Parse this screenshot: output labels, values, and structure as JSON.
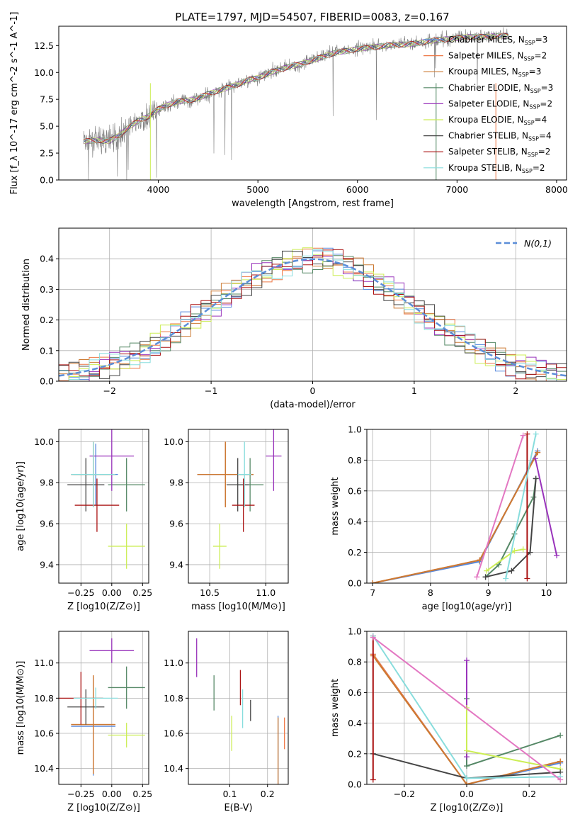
{
  "figure": {
    "title": "PLATE=1797, MJD=54507, FIBERID=0083, z=0.167"
  },
  "models": [
    {
      "name": "Chabrier MILES",
      "nssp": "3",
      "color": "#5588dd"
    },
    {
      "name": "Salpeter MILES",
      "nssp": "2",
      "color": "#ee7744"
    },
    {
      "name": "Kroupa MILES",
      "nssp": "3",
      "color": "#cc7a33"
    },
    {
      "name": "Chabrier ELODIE",
      "nssp": "3",
      "color": "#558866"
    },
    {
      "name": "Salpeter ELODIE",
      "nssp": "2",
      "color": "#9933bb"
    },
    {
      "name": "Kroupa ELODIE",
      "nssp": "4",
      "color": "#ccee55"
    },
    {
      "name": "Chabrier STELIB",
      "nssp": "4",
      "color": "#444444"
    },
    {
      "name": "Salpeter STELIB",
      "nssp": "2",
      "color": "#aa1111"
    },
    {
      "name": "Kroupa STELIB",
      "nssp": "2",
      "color": "#88dddd"
    }
  ],
  "chart_data": [
    {
      "type": "line",
      "id": "spectrum",
      "xlabel": "wavelength [Angstrom, rest frame]",
      "ylabel": "Flux [f_λ 10^-17 erg cm^-2 s^-1 A^-1]",
      "xlim": [
        3000,
        8100
      ],
      "ylim": [
        0,
        14.3
      ],
      "xticks": [
        "4000",
        "5000",
        "6000",
        "7000",
        "8000"
      ],
      "yticks": [
        "0.0",
        "2.5",
        "5.0",
        "7.5",
        "10.0",
        "12.5"
      ],
      "data_color": "#808080",
      "data": {
        "x": [
          3250,
          3400,
          3500,
          3600,
          3700,
          3800,
          3900,
          4000,
          4100,
          4200,
          4300,
          4400,
          4500,
          4600,
          4700,
          4800,
          4900,
          5000,
          5100,
          5200,
          5300,
          5400,
          5500,
          5600,
          5700,
          5800,
          5900,
          6000,
          6100,
          6200,
          6300,
          6400,
          6500,
          6600,
          6700,
          6800,
          6900,
          7000,
          7100,
          7200,
          7300,
          7400,
          7500
        ],
        "y": [
          3.6,
          3.7,
          3.7,
          4.0,
          4.8,
          5.4,
          5.8,
          6.5,
          7.0,
          7.4,
          7.3,
          7.6,
          7.9,
          8.4,
          8.6,
          8.9,
          9.2,
          9.5,
          9.9,
          10.3,
          10.6,
          10.6,
          11.0,
          11.4,
          11.7,
          12.0,
          12.1,
          12.2,
          12.4,
          12.5,
          12.4,
          12.6,
          12.7,
          12.7,
          12.9,
          13.0,
          13.1,
          13.2,
          13.3,
          13.3,
          13.4,
          13.4,
          13.4
        ]
      },
      "model_fit": {
        "x": [
          3250,
          3400,
          3500,
          3600,
          3700,
          3800,
          3900,
          4000,
          4100,
          4200,
          4300,
          4400,
          4500,
          4600,
          4700,
          4800,
          4900,
          5000,
          5100,
          5200,
          5300,
          5400,
          5500,
          5600,
          5700,
          5800,
          5900,
          6000,
          6100,
          6200,
          6300,
          6400,
          6500,
          6600,
          6700,
          6800,
          6900,
          7000,
          7100,
          7200,
          7300,
          7400,
          7500
        ],
        "y": [
          3.6,
          3.7,
          3.6,
          4.1,
          4.9,
          5.5,
          5.9,
          6.6,
          7.0,
          7.3,
          7.4,
          7.6,
          8.0,
          8.3,
          8.6,
          8.9,
          9.3,
          9.5,
          9.9,
          10.2,
          10.5,
          10.7,
          11.0,
          11.3,
          11.6,
          11.9,
          12.0,
          12.2,
          12.3,
          12.4,
          12.5,
          12.6,
          12.6,
          12.7,
          12.9,
          13.0,
          13.1,
          13.2,
          13.3,
          13.3,
          13.3,
          13.4,
          13.4
        ]
      },
      "legend_position": "top-right"
    },
    {
      "type": "histogram",
      "id": "residuals",
      "xlabel": "(data-model)/error",
      "ylabel": "Normed distribution",
      "xlim": [
        -2.5,
        2.5
      ],
      "ylim": [
        0,
        0.5
      ],
      "xticks": [
        "−2",
        "−1",
        "0",
        "1",
        "2"
      ],
      "yticks": [
        "0.0",
        "0.1",
        "0.2",
        "0.3",
        "0.4"
      ],
      "bin_edges": [
        -2.5,
        -2.4,
        -2.3,
        -2.2,
        -2.1,
        -2.0,
        -1.9,
        -1.8,
        -1.7,
        -1.6,
        -1.5,
        -1.4,
        -1.3,
        -1.2,
        -1.1,
        -1.0,
        -0.9,
        -0.8,
        -0.7,
        -0.6,
        -0.5,
        -0.4,
        -0.3,
        -0.2,
        -0.1,
        0.0,
        0.1,
        0.2,
        0.3,
        0.4,
        0.5,
        0.6,
        0.7,
        0.8,
        0.9,
        1.0,
        1.1,
        1.2,
        1.3,
        1.4,
        1.5,
        1.6,
        1.7,
        1.8,
        1.9,
        2.0,
        2.1,
        2.2,
        2.3,
        2.4,
        2.5
      ],
      "reference": {
        "label": "N(0,1)",
        "color": "#5b8ed8"
      },
      "legend_position": "top-right"
    },
    {
      "type": "scatter",
      "id": "age-z",
      "xlabel": "Z [log10(Z/Z⊙)]",
      "ylabel": "age [log10(age/yr)]",
      "xlim": [
        -0.43,
        0.3
      ],
      "ylim": [
        9.31,
        10.06
      ],
      "xticks": [
        "−0.25",
        "0.00",
        "0.25"
      ],
      "yticks": [
        "9.4",
        "9.6",
        "9.8",
        "10.0"
      ],
      "points": [
        {
          "model": 0,
          "x": -0.13,
          "y": 9.84,
          "xerr": 0.18,
          "yerr": 0.15
        },
        {
          "model": 1,
          "x": -0.15,
          "y": 9.84,
          "xerr": 0.18,
          "yerr": 0.16
        },
        {
          "model": 2,
          "x": -0.15,
          "y": 9.84,
          "xerr": 0.18,
          "yerr": 0.16
        },
        {
          "model": 3,
          "x": 0.12,
          "y": 9.79,
          "xerr": 0.15,
          "yerr": 0.13
        },
        {
          "model": 4,
          "x": 0.0,
          "y": 9.93,
          "xerr": 0.18,
          "yerr": 0.17
        },
        {
          "model": 5,
          "x": 0.12,
          "y": 9.49,
          "xerr": 0.15,
          "yerr": 0.11
        },
        {
          "model": 6,
          "x": -0.21,
          "y": 9.79,
          "xerr": 0.15,
          "yerr": 0.13
        },
        {
          "model": 7,
          "x": -0.12,
          "y": 9.69,
          "xerr": 0.18,
          "yerr": 0.13
        },
        {
          "model": 8,
          "x": -0.15,
          "y": 9.84,
          "xerr": 0.18,
          "yerr": 0.16
        }
      ]
    },
    {
      "type": "scatter",
      "id": "age-mass",
      "xlabel": "mass [log10(M/M⊙)]",
      "ylabel": "",
      "xlim": [
        10.31,
        11.2
      ],
      "ylim": [
        9.31,
        10.06
      ],
      "xticks": [
        "10.5",
        "11.0"
      ],
      "yticks": [
        "9.4",
        "9.6",
        "9.8",
        "10.0"
      ],
      "points": [
        {
          "model": 0,
          "x": 10.64,
          "y": 9.84,
          "xerr": 0.25,
          "yerr": 0.15
        },
        {
          "model": 1,
          "x": 10.64,
          "y": 9.84,
          "xerr": 0.25,
          "yerr": 0.16
        },
        {
          "model": 2,
          "x": 10.64,
          "y": 9.84,
          "xerr": 0.25,
          "yerr": 0.16
        },
        {
          "model": 3,
          "x": 10.86,
          "y": 9.79,
          "xerr": 0.12,
          "yerr": 0.13
        },
        {
          "model": 4,
          "x": 11.07,
          "y": 9.93,
          "xerr": 0.07,
          "yerr": 0.17
        },
        {
          "model": 5,
          "x": 10.59,
          "y": 9.49,
          "xerr": 0.06,
          "yerr": 0.11
        },
        {
          "model": 6,
          "x": 10.75,
          "y": 9.79,
          "xerr": 0.1,
          "yerr": 0.13
        },
        {
          "model": 7,
          "x": 10.8,
          "y": 9.69,
          "xerr": 0.1,
          "yerr": 0.13
        },
        {
          "model": 8,
          "x": 10.81,
          "y": 9.84,
          "xerr": 0.06,
          "yerr": 0.16
        }
      ]
    },
    {
      "type": "line",
      "id": "weight-age",
      "xlabel": "age [log10(age/yr)]",
      "ylabel": "mass weight",
      "xlim": [
        6.9,
        10.35
      ],
      "ylim": [
        0,
        1
      ],
      "xticks": [
        "7",
        "8",
        "9",
        "10"
      ],
      "yticks": [
        "0.0",
        "0.2",
        "0.4",
        "0.6",
        "0.8",
        "1.0"
      ],
      "series": [
        {
          "model": 0,
          "x": [
            7.0,
            8.85,
            9.85
          ],
          "y": [
            0.0,
            0.14,
            0.86
          ]
        },
        {
          "model": 1,
          "x": [
            7.0,
            8.85,
            9.85
          ],
          "y": [
            0.0,
            0.15,
            0.85
          ]
        },
        {
          "model": 2,
          "x": [
            7.0,
            8.85,
            9.85
          ],
          "y": [
            0.0,
            0.15,
            0.85
          ]
        },
        {
          "model": 3,
          "x": [
            8.95,
            9.18,
            9.45,
            9.78,
            9.82
          ],
          "y": [
            0.04,
            0.12,
            0.32,
            0.56,
            0.68
          ]
        },
        {
          "model": 4,
          "x": [
            9.81,
            10.18
          ],
          "y": [
            0.81,
            0.18
          ]
        },
        {
          "model": 5,
          "x": [
            8.97,
            9.45,
            9.6
          ],
          "y": [
            0.08,
            0.21,
            0.22
          ]
        },
        {
          "model": 6,
          "x": [
            8.95,
            9.4,
            9.72,
            9.82
          ],
          "y": [
            0.04,
            0.08,
            0.2,
            0.68
          ]
        },
        {
          "model": 7,
          "x": [
            9.67,
            9.67
          ],
          "y": [
            0.03,
            0.97
          ]
        },
        {
          "model": 8,
          "x": [
            9.3,
            9.82
          ],
          "y": [
            0.03,
            0.97
          ]
        },
        {
          "model": "pink",
          "x": [
            8.8,
            9.6
          ],
          "y": [
            0.04,
            0.96
          ],
          "color": "#e377c2"
        }
      ]
    },
    {
      "type": "scatter",
      "id": "mass-z",
      "xlabel": "Z [log10(Z/Z⊙)]",
      "ylabel": "mass [log10(M/M⊙)]",
      "xlim": [
        -0.43,
        0.3
      ],
      "ylim": [
        10.31,
        11.18
      ],
      "xticks": [
        "−0.25",
        "0.00",
        "0.25"
      ],
      "yticks": [
        "10.4",
        "10.6",
        "10.8",
        "11.0"
      ],
      "points": [
        {
          "model": 0,
          "x": -0.15,
          "y": 10.64,
          "xerr": 0.18,
          "yerr": 0.28
        },
        {
          "model": 1,
          "x": -0.15,
          "y": 10.65,
          "xerr": 0.18,
          "yerr": 0.28
        },
        {
          "model": 2,
          "x": -0.15,
          "y": 10.65,
          "xerr": 0.18,
          "yerr": 0.28
        },
        {
          "model": 3,
          "x": 0.12,
          "y": 10.86,
          "xerr": 0.15,
          "yerr": 0.12
        },
        {
          "model": 4,
          "x": 0.0,
          "y": 11.07,
          "xerr": 0.18,
          "yerr": 0.07
        },
        {
          "model": 5,
          "x": 0.12,
          "y": 10.59,
          "xerr": 0.15,
          "yerr": 0.07
        },
        {
          "model": 6,
          "x": -0.21,
          "y": 10.75,
          "xerr": 0.15,
          "yerr": 0.1
        },
        {
          "model": 7,
          "x": -0.25,
          "y": 10.8,
          "xerr": 0.18,
          "yerr": 0.15
        },
        {
          "model": 8,
          "x": -0.13,
          "y": 10.8,
          "xerr": 0.18,
          "yerr": 0.06
        }
      ]
    },
    {
      "type": "scatter",
      "id": "mass-ebv",
      "xlabel": "E(B-V)",
      "ylabel": "",
      "xlim": [
        -0.01,
        0.255
      ],
      "ylim": [
        10.31,
        11.18
      ],
      "xticks": [
        "0.1",
        "0.2"
      ],
      "yticks": [
        "10.4",
        "10.6",
        "10.8",
        "11.0"
      ],
      "points": [
        {
          "model": 0,
          "x": 0.228,
          "y": 10.5,
          "xerr": 0,
          "yerr": 0.2
        },
        {
          "model": 1,
          "x": 0.245,
          "y": 10.6,
          "xerr": 0,
          "yerr": 0.09
        },
        {
          "model": 2,
          "x": 0.228,
          "y": 10.49,
          "xerr": 0,
          "yerr": 0.2
        },
        {
          "model": 3,
          "x": 0.058,
          "y": 10.83,
          "xerr": 0,
          "yerr": 0.1
        },
        {
          "model": 4,
          "x": 0.012,
          "y": 11.03,
          "xerr": 0,
          "yerr": 0.11
        },
        {
          "model": 5,
          "x": 0.105,
          "y": 10.6,
          "xerr": 0,
          "yerr": 0.1
        },
        {
          "model": 6,
          "x": 0.155,
          "y": 10.73,
          "xerr": 0,
          "yerr": 0.06
        },
        {
          "model": 7,
          "x": 0.128,
          "y": 10.86,
          "xerr": 0,
          "yerr": 0.1
        },
        {
          "model": 8,
          "x": 0.134,
          "y": 10.74,
          "xerr": 0,
          "yerr": 0.11
        }
      ]
    },
    {
      "type": "line",
      "id": "weight-z",
      "xlabel": "Z [log10(Z/Z⊙)]",
      "ylabel": "mass weight",
      "xlim": [
        -0.32,
        0.32
      ],
      "ylim": [
        0,
        1
      ],
      "xticks": [
        "−0.2",
        "0.0",
        "0.2"
      ],
      "yticks": [
        "0.0",
        "0.2",
        "0.4",
        "0.6",
        "0.8",
        "1.0"
      ],
      "series": [
        {
          "model": 0,
          "x": [
            -0.3,
            0.0,
            0.3
          ],
          "y": [
            0.85,
            0.0,
            0.14
          ]
        },
        {
          "model": 1,
          "x": [
            -0.3,
            0.0,
            0.3
          ],
          "y": [
            0.85,
            0.0,
            0.15
          ]
        },
        {
          "model": 2,
          "x": [
            -0.3,
            0.0,
            0.3
          ],
          "y": [
            0.84,
            0.0,
            0.15
          ]
        },
        {
          "model": 3,
          "x": [
            0.0,
            0.0,
            0.3
          ],
          "y": [
            0.56,
            0.12,
            0.32
          ]
        },
        {
          "model": 4,
          "x": [
            0.0,
            0.0
          ],
          "y": [
            0.81,
            0.18
          ]
        },
        {
          "model": 5,
          "x": [
            0.0,
            0.0,
            0.3
          ],
          "y": [
            0.5,
            0.22,
            0.1
          ]
        },
        {
          "model": 6,
          "x": [
            -0.3,
            0.0,
            0.3
          ],
          "y": [
            0.2,
            0.04,
            0.08
          ]
        },
        {
          "model": 7,
          "x": [
            -0.3,
            -0.3
          ],
          "y": [
            0.03,
            0.97
          ]
        },
        {
          "model": 8,
          "x": [
            -0.3,
            0.0,
            0.3
          ],
          "y": [
            0.97,
            0.04,
            0.05
          ]
        },
        {
          "model": "pink",
          "x": [
            -0.3,
            0.3
          ],
          "y": [
            0.96,
            0.03
          ],
          "color": "#e377c2"
        }
      ]
    }
  ]
}
